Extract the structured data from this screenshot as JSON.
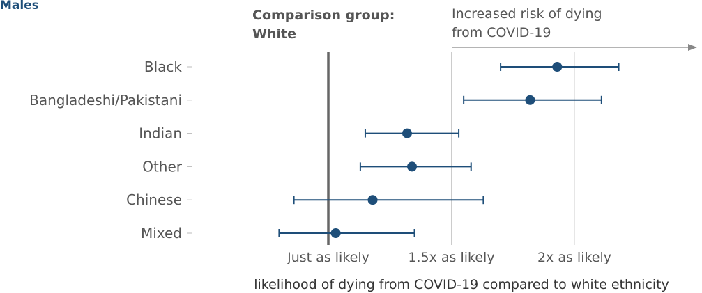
{
  "panel_title": "Males",
  "comparison": {
    "line1": "Comparison group:",
    "line2": "White"
  },
  "annotation": {
    "line1": "Increased risk of dying",
    "line2": "from COVID-19"
  },
  "colors": {
    "marker": "#1e4e79",
    "reference_line": "#666666",
    "grid": "#cccccc",
    "arrow": "#888888"
  },
  "chart_data": {
    "type": "scatter",
    "title": "",
    "xlabel": "likelihood of dying from COVID-19 compared to white ethnicity",
    "ylabel": "",
    "xlim": [
      0.8,
      2.5
    ],
    "x_ticks": [
      {
        "value": 1.0,
        "label": "Just as likely"
      },
      {
        "value": 1.5,
        "label": "1.5x as likely"
      },
      {
        "value": 2.0,
        "label": "2x as likely"
      }
    ],
    "reference_value": 1.0,
    "grid": true,
    "categories": [
      "Black",
      "Bangladeshi/Pakistani",
      "Indian",
      "Other",
      "Chinese",
      "Mixed"
    ],
    "estimates": [
      1.93,
      1.82,
      1.32,
      1.34,
      1.18,
      1.03
    ],
    "lower": [
      1.7,
      1.55,
      1.15,
      1.13,
      0.86,
      0.8
    ],
    "upper": [
      2.18,
      2.11,
      1.53,
      1.58,
      1.63,
      1.35
    ]
  }
}
